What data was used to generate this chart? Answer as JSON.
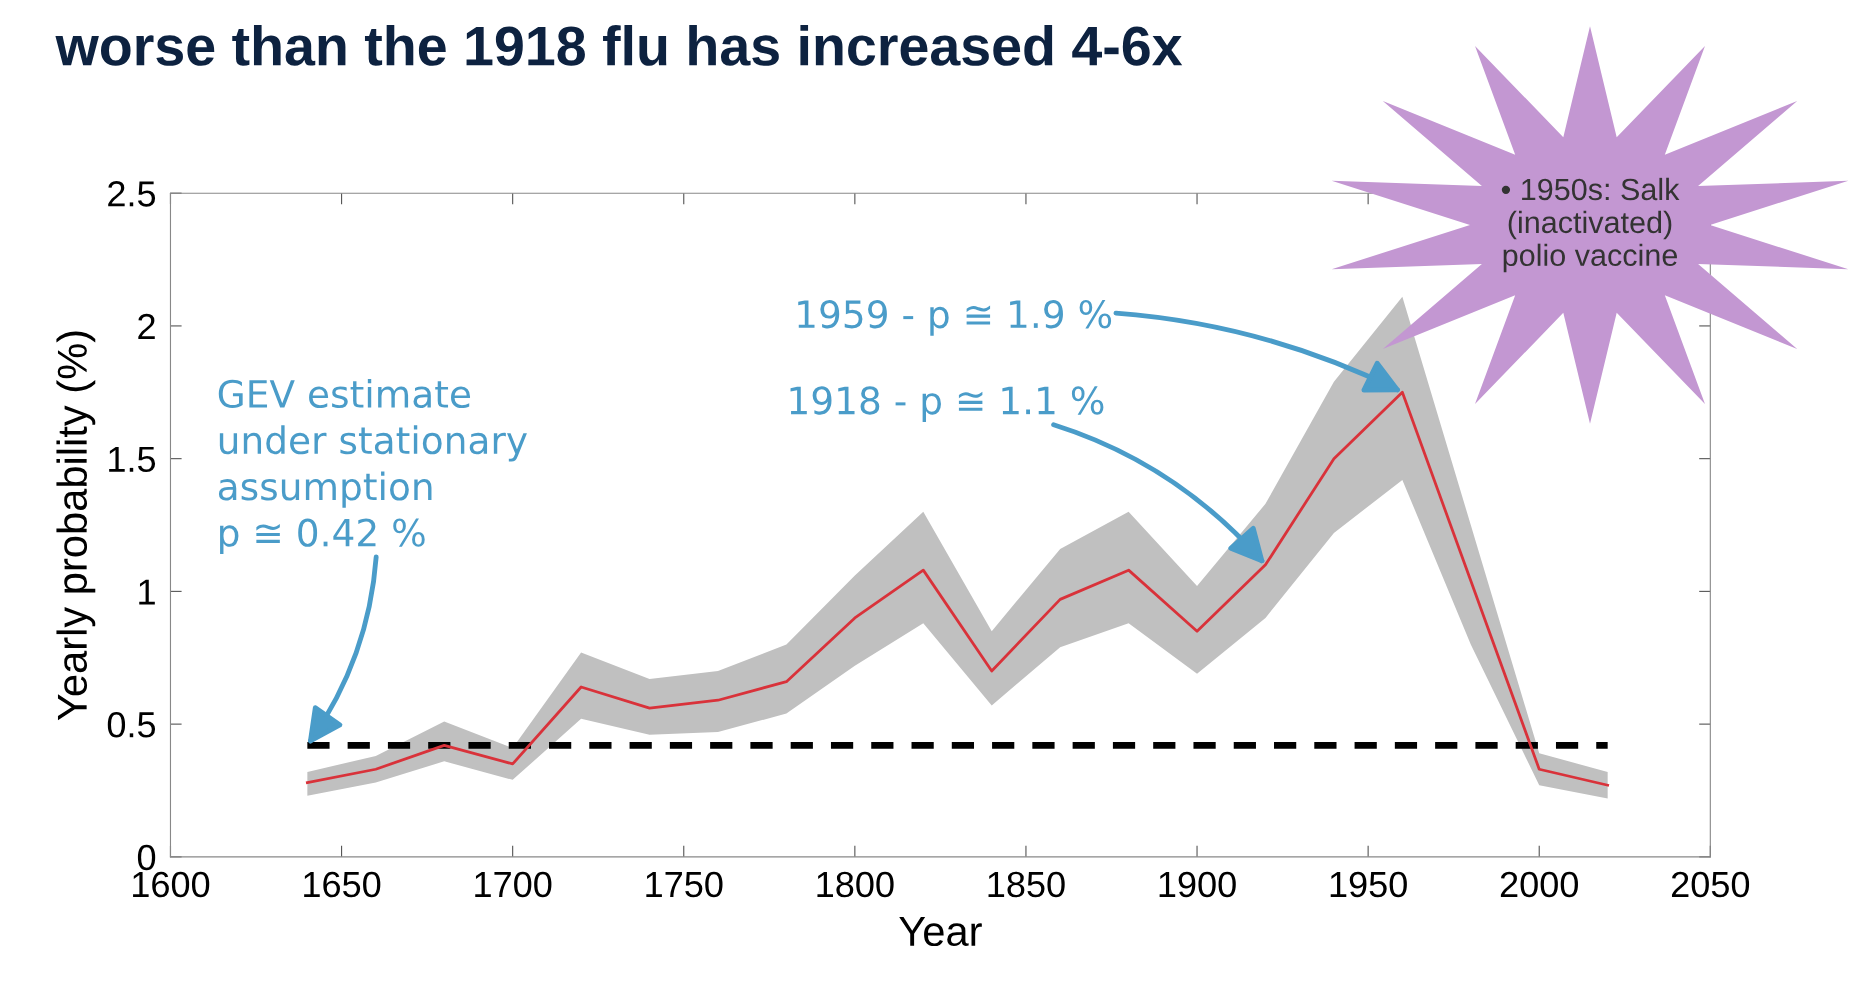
{
  "chart_data": {
    "type": "line",
    "title": "worse than the 1918 flu has increased 4-6x",
    "xlabel": "Year",
    "ylabel": "Yearly probability (%)",
    "x": [
      1640,
      1660,
      1680,
      1700,
      1720,
      1740,
      1760,
      1780,
      1800,
      1820,
      1840,
      1860,
      1880,
      1900,
      1920,
      1940,
      1960,
      1980,
      2000,
      2020
    ],
    "series": [
      {
        "color": "#d9323a",
        "values": [
          0.28,
          0.33,
          0.42,
          0.35,
          0.64,
          0.56,
          0.59,
          0.66,
          0.9,
          1.08,
          0.7,
          0.97,
          1.08,
          0.85,
          1.1,
          1.5,
          1.75,
          1.04,
          0.33,
          0.27
        ],
        "lower": [
          0.23,
          0.28,
          0.36,
          0.29,
          0.52,
          0.46,
          0.47,
          0.54,
          0.72,
          0.88,
          0.57,
          0.79,
          0.88,
          0.69,
          0.9,
          1.22,
          1.42,
          0.8,
          0.27,
          0.22
        ],
        "upper": [
          0.32,
          0.38,
          0.51,
          0.41,
          0.77,
          0.67,
          0.7,
          0.8,
          1.06,
          1.3,
          0.85,
          1.16,
          1.3,
          1.02,
          1.33,
          1.79,
          2.11,
          1.25,
          0.39,
          0.32
        ]
      }
    ],
    "ref_lines": [
      {
        "axis": "y",
        "value": 0.42,
        "color": "#000000",
        "line_style": "dashed"
      }
    ],
    "annotations": [
      "GEV estimate\nunder stationary\nassumption\np ≅ 0.42 %",
      {
        "text": "1959 - p ≅ 1.9 %",
        "x": 1960,
        "y": 1.75
      },
      {
        "text": "1918 - p ≅ 1.1 %",
        "x": 1920,
        "y": 1.1
      },
      "• 1950s: Salk\n(inactivated)\npolio vaccine"
    ],
    "xlim": [
      1600,
      2050
    ],
    "ylim": [
      0,
      2.5
    ],
    "xticks": [
      1600,
      1650,
      1700,
      1750,
      1800,
      1850,
      1900,
      1950,
      2000,
      2050
    ],
    "yticks": [
      0,
      0.5,
      1,
      1.5,
      2,
      2.5
    ],
    "grid": false,
    "legend": false,
    "marker": "none",
    "line_style": "solid"
  }
}
